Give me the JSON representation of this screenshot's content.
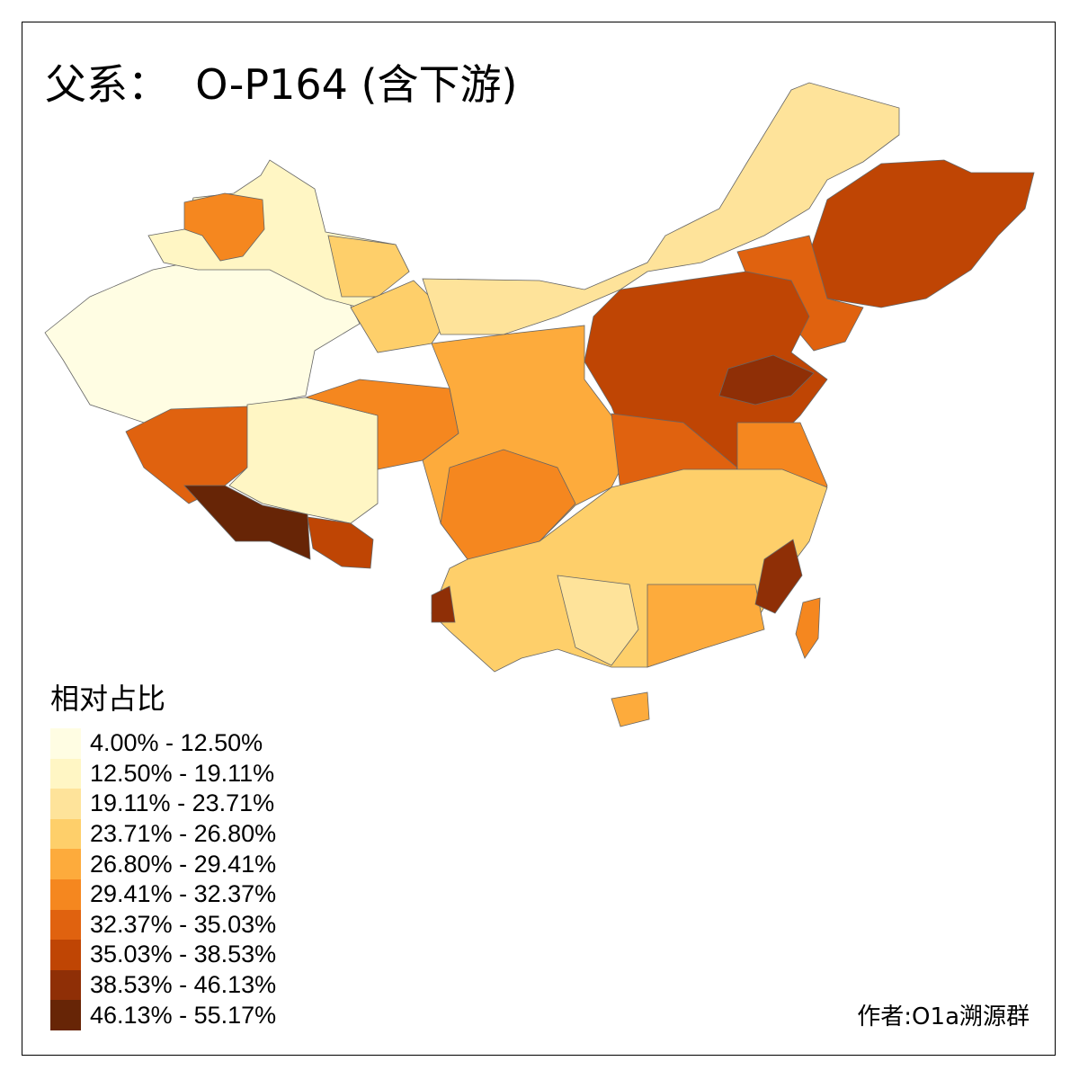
{
  "title": "父系：  O-P164 (含下游)",
  "legend": {
    "title": "相对占比",
    "classes": [
      {
        "label": "4.00% - 12.50%",
        "color": "#FFFDE3"
      },
      {
        "label": "12.50% - 19.11%",
        "color": "#FFF6C4"
      },
      {
        "label": "19.11% - 23.71%",
        "color": "#FEE39A"
      },
      {
        "label": "23.71% - 26.80%",
        "color": "#FECF6A"
      },
      {
        "label": "26.80% - 29.41%",
        "color": "#FDAB3C"
      },
      {
        "label": "29.41% - 32.37%",
        "color": "#F5871F"
      },
      {
        "label": "32.37% - 35.03%",
        "color": "#E0620F"
      },
      {
        "label": "35.03% - 38.53%",
        "color": "#BF4504"
      },
      {
        "label": "38.53% - 46.13%",
        "color": "#8F2F06"
      },
      {
        "label": "46.13% - 55.17%",
        "color": "#672506"
      }
    ]
  },
  "author": "作者:O1a溯源群"
}
